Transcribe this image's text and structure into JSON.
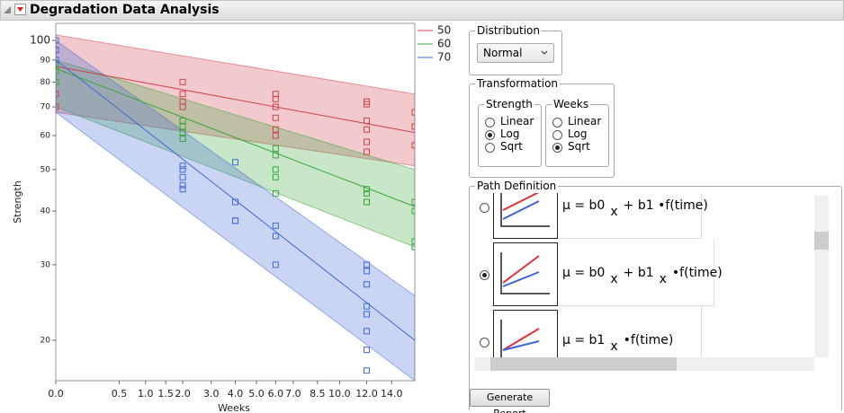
{
  "header": {
    "title": "Degradation Data Analysis"
  },
  "chart_data": {
    "type": "scatter",
    "x_label": "Weeks",
    "y_label": "Strength",
    "x_scale": "sqrt",
    "y_scale": "log",
    "xlim": [
      0,
      16
    ],
    "ylim": [
      16.1,
      109.6
    ],
    "xticks": [
      {
        "value": 0,
        "label": "0.0"
      },
      0.5,
      {
        "value": 1,
        "label": "1.0"
      },
      1.5,
      {
        "value": 2,
        "label": "2.0"
      },
      {
        "value": 3,
        "label": "3.0"
      },
      {
        "value": 4,
        "label": "4.0"
      },
      {
        "value": 5,
        "label": "5.0"
      },
      {
        "value": 6,
        "label": "6.0"
      },
      {
        "value": 7,
        "label": "7.0"
      },
      8.5,
      {
        "value": 10,
        "label": "10.0"
      },
      {
        "value": 12,
        "label": "12.0"
      },
      {
        "value": 14,
        "label": "14.0"
      }
    ],
    "yticks": [
      20,
      30,
      40,
      50,
      60,
      70,
      80,
      90,
      100
    ],
    "series": [
      {
        "name": "50",
        "color": "#d0424a",
        "x": [
          0,
          0,
          2,
          2,
          2,
          2,
          6,
          6,
          6,
          6,
          6,
          6,
          12,
          12,
          12,
          12,
          12,
          12,
          16,
          16,
          16
        ],
        "values": [
          75,
          70,
          80,
          75,
          72,
          70,
          75,
          73,
          70,
          66,
          62,
          60,
          72,
          71,
          65,
          62,
          58,
          55,
          68,
          63,
          57
        ],
        "fit": [
          87,
          61
        ],
        "band_upper": [
          103,
          75
        ],
        "band_lower": [
          68,
          51
        ]
      },
      {
        "name": "60",
        "color": "#3aa63a",
        "x": [
          0,
          0,
          0,
          2,
          2,
          2,
          2,
          6,
          6,
          6,
          6,
          6,
          12,
          12,
          12,
          12,
          16,
          16,
          16,
          16
        ],
        "values": [
          88,
          85,
          80,
          65,
          63,
          61,
          59,
          56,
          54,
          50,
          48,
          44,
          45,
          44,
          42,
          42,
          42,
          40,
          34,
          33
        ],
        "fit": [
          86,
          41
        ],
        "band_upper": [
          90,
          50
        ],
        "band_lower": [
          70,
          33
        ]
      },
      {
        "name": "70",
        "color": "#4169d8",
        "x": [
          0,
          0,
          0,
          2,
          2,
          2,
          2,
          2,
          4,
          4,
          4,
          4,
          6,
          6,
          6,
          12,
          12,
          12,
          12,
          12,
          12,
          12,
          12
        ],
        "values": [
          100,
          95,
          90,
          51,
          50,
          48,
          46,
          45,
          52,
          42,
          38,
          38,
          37,
          35,
          30,
          30,
          29,
          27,
          24,
          23,
          21,
          19,
          17
        ],
        "fit": [
          90,
          20
        ],
        "band_upper": [
          100,
          25.4
        ],
        "band_lower": [
          68,
          16.1
        ]
      }
    ]
  },
  "controls": {
    "distribution": {
      "label": "Distribution",
      "value": "Normal"
    },
    "transformation": {
      "label": "Transformation",
      "groups": [
        {
          "label": "Strength",
          "options": [
            "Linear",
            "Log",
            "Sqrt"
          ],
          "selected": 1
        },
        {
          "label": "Weeks",
          "options": [
            "Linear",
            "Log",
            "Sqrt"
          ],
          "selected": 2
        }
      ]
    },
    "path_definition": {
      "label": "Path Definition",
      "selected": 1,
      "options": [
        {
          "parts": [
            {
              "t": "μ = b0"
            },
            {
              "sub": "x"
            },
            {
              "t": "+ b1"
            },
            {
              "t": "•f(time)"
            }
          ]
        },
        {
          "parts": [
            {
              "t": "μ = b0"
            },
            {
              "sub": "x"
            },
            {
              "t": "+ b1"
            },
            {
              "sub": "x"
            },
            {
              "t": "•f(time)"
            }
          ]
        },
        {
          "parts": [
            {
              "t": "μ = b1"
            },
            {
              "sub": "x"
            },
            {
              "t": "•f(time)"
            }
          ]
        }
      ]
    },
    "button": "Generate Report"
  }
}
